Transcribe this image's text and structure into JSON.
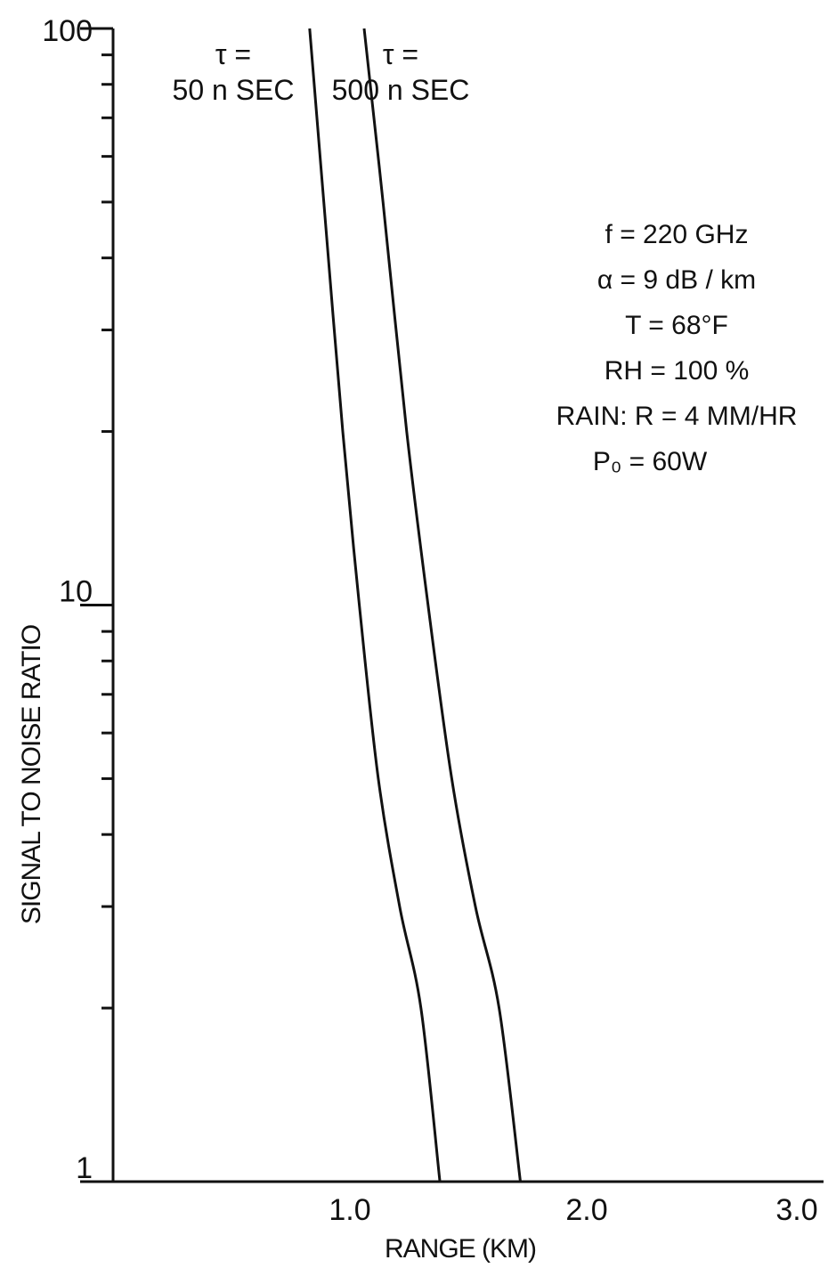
{
  "chart_data": {
    "type": "line",
    "title": "",
    "xlabel": "RANGE (KM)",
    "ylabel": "SIGNAL TO NOISE RATIO",
    "xlim": [
      0,
      3.0
    ],
    "ylim": [
      1,
      100
    ],
    "yscale": "log",
    "grid": false,
    "x_ticks": [
      "1.0",
      "2.0",
      "3.0"
    ],
    "y_ticks": [
      {
        "value": 100,
        "label": "100"
      },
      {
        "value": 10,
        "label": "10"
      },
      {
        "value": 1,
        "label": "1"
      }
    ],
    "series": [
      {
        "name_lines": [
          "τ =",
          "50 n SEC"
        ],
        "x": [
          0.83,
          0.89,
          0.97,
          1.04,
          1.12,
          1.21,
          1.3,
          1.38
        ],
        "y": [
          100,
          50,
          20,
          10,
          5,
          3,
          2,
          1
        ]
      },
      {
        "name_lines": [
          "τ =",
          "500 n SEC"
        ],
        "x": [
          1.06,
          1.14,
          1.24,
          1.33,
          1.43,
          1.53,
          1.63,
          1.72
        ],
        "y": [
          100,
          50,
          20,
          10,
          5,
          3,
          2,
          1
        ]
      }
    ],
    "annotations": [
      "f = 220 GHz",
      "α = 9 dB / km",
      "T = 68°F",
      "RH = 100 %",
      "RAIN: R = 4 MM/HR",
      "P₀ = 60W"
    ],
    "line_color": "#111111"
  }
}
